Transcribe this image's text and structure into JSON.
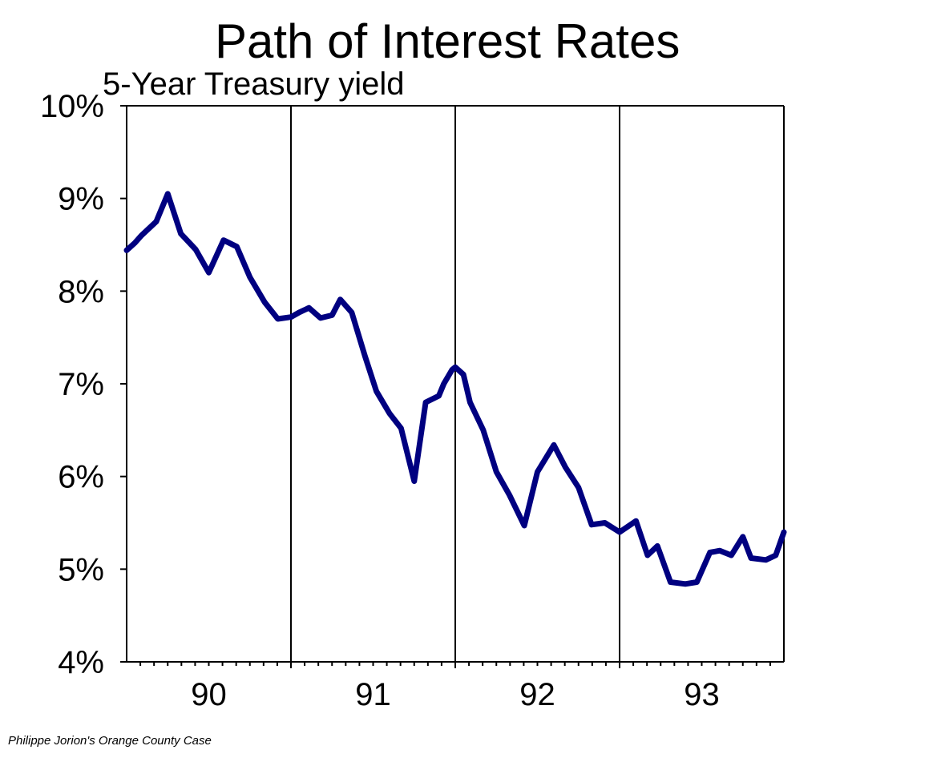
{
  "chart_data": {
    "type": "line",
    "title": "Path of Interest Rates",
    "subtitle": "5-Year Treasury yield",
    "xlabel": "",
    "ylabel": "",
    "ylim": [
      4,
      10
    ],
    "xlim": [
      1989.75,
      1993.75
    ],
    "y_ticks": [
      "4%",
      "5%",
      "6%",
      "7%",
      "8%",
      "9%",
      "10%"
    ],
    "x_ticks": [
      {
        "label": "90",
        "center": 1990.25
      },
      {
        "label": "91",
        "center": 1991.25
      },
      {
        "label": "92",
        "center": 1992.25
      },
      {
        "label": "93",
        "center": 1993.25
      }
    ],
    "year_dividers": [
      1990.75,
      1991.75,
      1992.75
    ],
    "minor_ticks_per_year": 12,
    "grid": false,
    "series": [
      {
        "name": "",
        "color": "#000080",
        "x": [
          1989.75,
          1989.8,
          1989.84,
          1989.93,
          1990.0,
          1990.08,
          1990.17,
          1990.25,
          1990.34,
          1990.42,
          1990.5,
          1990.59,
          1990.67,
          1990.75,
          1990.8,
          1990.86,
          1990.93,
          1991.0,
          1991.05,
          1991.12,
          1991.2,
          1991.27,
          1991.35,
          1991.42,
          1991.5,
          1991.57,
          1991.65,
          1991.68,
          1991.73,
          1991.75,
          1991.8,
          1991.84,
          1991.92,
          1992.0,
          1992.08,
          1992.17,
          1992.25,
          1992.35,
          1992.42,
          1992.5,
          1992.58,
          1992.66,
          1992.75,
          1992.85,
          1992.92,
          1992.98,
          1993.06,
          1993.15,
          1993.22,
          1993.3,
          1993.36,
          1993.43,
          1993.5,
          1993.55,
          1993.64,
          1993.7,
          1993.75
        ],
        "values": [
          8.44,
          8.52,
          8.6,
          8.75,
          9.05,
          8.62,
          8.45,
          8.2,
          8.55,
          8.48,
          8.15,
          7.88,
          7.7,
          7.72,
          7.77,
          7.82,
          7.71,
          7.74,
          7.91,
          7.77,
          7.3,
          6.92,
          6.68,
          6.52,
          5.95,
          6.8,
          6.87,
          7.0,
          7.15,
          7.18,
          7.1,
          6.8,
          6.5,
          6.05,
          5.8,
          5.47,
          6.05,
          6.34,
          6.1,
          5.88,
          5.48,
          5.5,
          5.4,
          5.52,
          5.15,
          5.25,
          4.86,
          4.84,
          4.86,
          5.18,
          5.2,
          5.15,
          5.35,
          5.12,
          5.1,
          5.15,
          5.4
        ]
      }
    ]
  },
  "footer": {
    "credit": "Philippe Jorion's Orange County Case"
  }
}
